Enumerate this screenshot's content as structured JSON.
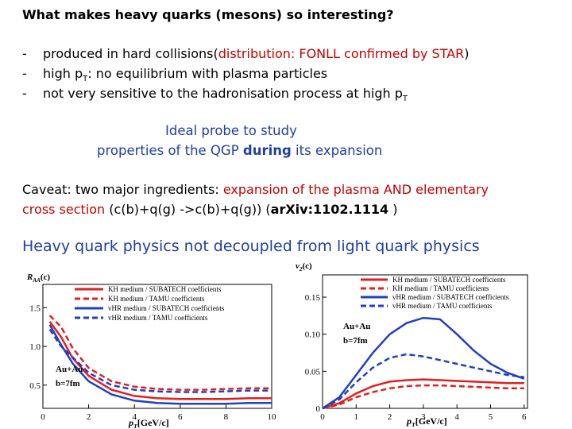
{
  "slide": {
    "title": "What makes heavy quarks (mesons) so interesting?",
    "bullets": [
      {
        "dash": "-",
        "pre": "produced in hard collisions(",
        "red": "distribution: FONLL confirmed by STAR",
        "post": ")"
      },
      {
        "dash": "-",
        "pre": "high p",
        "sub": "T",
        "post": ": no equilibrium with plasma particles"
      },
      {
        "dash": "-",
        "pre": "not very sensitive to the hadronisation process at high p",
        "sub": "T"
      }
    ],
    "probe_line1": "Ideal probe to study",
    "probe_line2_pre": "properties of the QGP ",
    "probe_line2_bold": "during",
    "probe_line2_post": " its expansion",
    "caveat_line1_pre": "Caveat: two major ingredients: ",
    "caveat_line1_red": "expansion of the plasma AND elementary",
    "caveat_line2_red": "cross section",
    "caveat_line2_mid": " (c(b)+q(g) ->c(b)+q(g)) (",
    "caveat_line2_bold": "arXiv:1102.1114",
    "caveat_line2_post": " )",
    "headline": "Heavy quark physics not decoupled from light quark physics"
  },
  "chart_data": [
    {
      "type": "line",
      "ylabel": "R",
      "ylabel_sub": "AA",
      "ylabel_suffix": "(c)",
      "xlabel": "p",
      "xlabel_sub": "T",
      "xlabel_suffix": "[GeV/c]",
      "xlim": [
        0,
        10
      ],
      "ylim": [
        0.2,
        1.8
      ],
      "xticks": [
        "0",
        "2",
        "4",
        "6",
        "8",
        "10"
      ],
      "yticks": [
        "0.5",
        "1.0",
        "1.5"
      ],
      "annotation_line1": "Au+Au",
      "annotation_line2": "b=7fm",
      "legend_position": "top-right",
      "series": [
        {
          "name": "KH medium / SUBATECH coefficients",
          "color": "#e02020",
          "dash": false,
          "x": [
            0.3,
            0.8,
            1.3,
            2,
            3,
            4,
            5,
            6,
            7,
            8,
            9,
            10
          ],
          "y": [
            1.32,
            1.12,
            0.85,
            0.62,
            0.44,
            0.36,
            0.33,
            0.32,
            0.32,
            0.32,
            0.33,
            0.33
          ]
        },
        {
          "name": "KH medium / TAMU coefficients",
          "color": "#e02020",
          "dash": true,
          "x": [
            0.3,
            0.8,
            1.3,
            2,
            3,
            4,
            5,
            6,
            7,
            8,
            9,
            10
          ],
          "y": [
            1.4,
            1.25,
            0.98,
            0.72,
            0.55,
            0.48,
            0.45,
            0.44,
            0.44,
            0.45,
            0.46,
            0.46
          ]
        },
        {
          "name": "vHR medium / SUBATECH coefficients",
          "color": "#2040c0",
          "dash": false,
          "x": [
            0.3,
            0.8,
            1.3,
            2,
            3,
            4,
            5,
            6,
            7,
            8,
            9,
            10
          ],
          "y": [
            1.28,
            1.02,
            0.78,
            0.55,
            0.38,
            0.3,
            0.27,
            0.26,
            0.26,
            0.26,
            0.27,
            0.27
          ]
        },
        {
          "name": "vHR medium / TAMU coefficients",
          "color": "#2040c0",
          "dash": true,
          "x": [
            0.3,
            0.8,
            1.3,
            2,
            3,
            4,
            5,
            6,
            7,
            8,
            9,
            10
          ],
          "y": [
            1.22,
            1.0,
            0.86,
            0.66,
            0.5,
            0.44,
            0.42,
            0.41,
            0.41,
            0.42,
            0.43,
            0.43
          ]
        }
      ]
    },
    {
      "type": "line",
      "ylabel": "v",
      "ylabel_sub": "2",
      "ylabel_suffix": "(c)",
      "xlabel": "p",
      "xlabel_sub": "T",
      "xlabel_suffix": "[GeV/c]",
      "xlim": [
        0,
        6.1
      ],
      "ylim": [
        0,
        0.18
      ],
      "xticks": [
        "0",
        "1",
        "2",
        "3",
        "4",
        "5",
        "6"
      ],
      "yticks": [
        "0",
        "0.05",
        "0.10",
        "0.15"
      ],
      "annotation_line1": "Au+Au",
      "annotation_line2": "b=7fm",
      "legend_position": "top-right",
      "series": [
        {
          "name": "KH medium / SUBATECH coefficients",
          "color": "#e02020",
          "dash": false,
          "x": [
            0,
            0.5,
            1,
            1.5,
            2,
            2.5,
            3,
            3.5,
            4,
            4.5,
            5,
            5.5,
            6
          ],
          "y": [
            0,
            0.007,
            0.02,
            0.03,
            0.036,
            0.038,
            0.039,
            0.038,
            0.037,
            0.036,
            0.035,
            0.034,
            0.034
          ]
        },
        {
          "name": "KH medium / TAMU coefficients",
          "color": "#e02020",
          "dash": true,
          "x": [
            0,
            0.5,
            1,
            1.5,
            2,
            2.5,
            3,
            3.5,
            4,
            4.5,
            5,
            5.5,
            6
          ],
          "y": [
            0,
            0.005,
            0.015,
            0.022,
            0.027,
            0.03,
            0.031,
            0.031,
            0.03,
            0.029,
            0.028,
            0.027,
            0.027
          ]
        },
        {
          "name": "vHR medium / SUBATECH coefficients",
          "color": "#2040c0",
          "dash": false,
          "x": [
            0,
            0.5,
            1,
            1.5,
            2,
            2.5,
            3,
            3.5,
            4,
            4.5,
            5,
            5.5,
            6
          ],
          "y": [
            0,
            0.015,
            0.045,
            0.075,
            0.1,
            0.115,
            0.122,
            0.12,
            0.1,
            0.078,
            0.06,
            0.048,
            0.04
          ]
        },
        {
          "name": "vHR medium / TAMU coefficients",
          "color": "#2040c0",
          "dash": true,
          "x": [
            0,
            0.5,
            1,
            1.5,
            2,
            2.5,
            3,
            3.5,
            4,
            4.5,
            5,
            5.5,
            6
          ],
          "y": [
            0,
            0.012,
            0.035,
            0.055,
            0.068,
            0.073,
            0.07,
            0.065,
            0.06,
            0.055,
            0.05,
            0.045,
            0.042
          ]
        }
      ]
    }
  ]
}
